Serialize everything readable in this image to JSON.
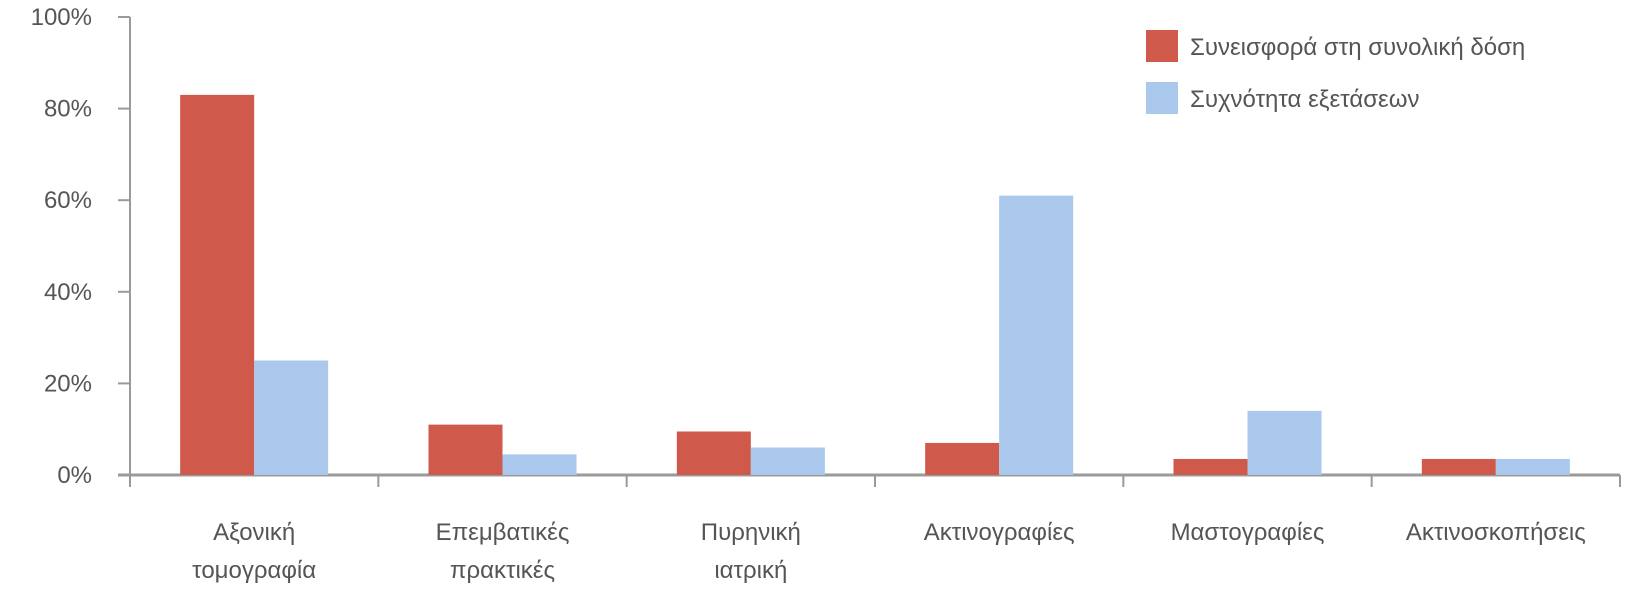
{
  "chart_data": {
    "type": "bar",
    "title": "",
    "xlabel": "",
    "ylabel": "",
    "ylim": [
      0,
      100
    ],
    "yticks": [
      "0%",
      "20%",
      "40%",
      "60%",
      "80%",
      "100%"
    ],
    "grid": false,
    "legend_position": "top-right",
    "categories": [
      [
        "Αξονική",
        "τομογραφία"
      ],
      [
        "Επεμβατικές",
        "πρακτικές"
      ],
      [
        "Πυρηνική",
        "ιατρική"
      ],
      [
        "Ακτινογραφίες"
      ],
      [
        "Μαστογραφίες"
      ],
      [
        "Ακτινοσκοπήσεις"
      ]
    ],
    "series": [
      {
        "name": "Συνεισφορά στη συνολική δόση",
        "color": "#cf5a4c",
        "values": [
          83,
          11,
          9.5,
          7,
          3.5,
          3.5
        ]
      },
      {
        "name": "Συχνότητα εξετάσεων",
        "color": "#a9c8ec",
        "values": [
          25,
          4.5,
          6,
          61,
          14,
          3.5
        ]
      }
    ]
  }
}
